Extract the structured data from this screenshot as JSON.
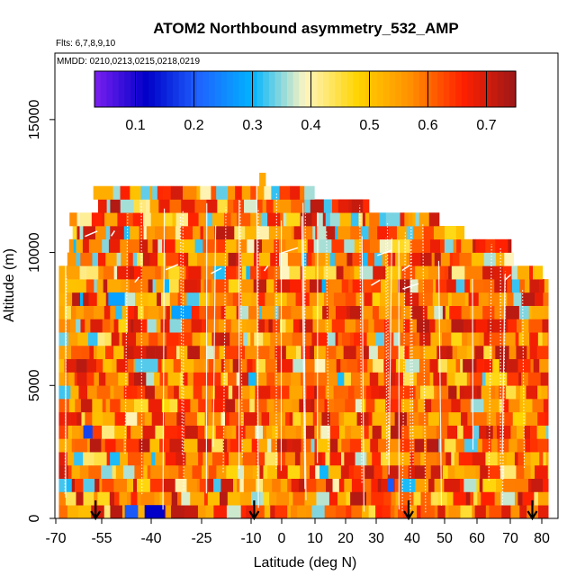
{
  "chart_data": {
    "type": "heatmap",
    "title": "ATOM2 Northbound asymmetry_532_AMP",
    "flights_note": "Flts: 6,7,8,9,10",
    "dates_note": "MMDD: 0210,0213,0215,0218,0219",
    "xlabel": "Latitude (deg N)",
    "ylabel": "Altitude (m)",
    "xlim": [
      -70,
      85
    ],
    "ylim": [
      0,
      17500
    ],
    "x_ticks": [
      -70,
      -55,
      -40,
      -25,
      -10,
      0,
      10,
      20,
      30,
      40,
      50,
      60,
      70,
      80
    ],
    "x_tick_labels": [
      "-70",
      "-55",
      "-40",
      "-25",
      "-10",
      "0",
      "10",
      "20",
      "30",
      "40",
      "50",
      "60",
      "70",
      "80"
    ],
    "y_ticks": [
      0,
      5000,
      10000,
      15000
    ],
    "y_tick_labels": [
      "0",
      "5000",
      "10000",
      "15000"
    ],
    "colorbar": {
      "range": [
        0.03,
        0.75
      ],
      "ticks": [
        0.1,
        0.2,
        0.3,
        0.4,
        0.5,
        0.6,
        0.7
      ],
      "tick_labels": [
        "0.1",
        "0.2",
        "0.3",
        "0.4",
        "0.5",
        "0.6",
        "0.7"
      ],
      "colors": [
        "#7a1ff0",
        "#0000c8",
        "#1e64ff",
        "#00b4ff",
        "#fff5c0",
        "#ffd400",
        "#ff9000",
        "#ff2000",
        "#9c1818"
      ]
    },
    "altitude_bins_m": 500,
    "curtain_top_m": [
      {
        "lat": -69,
        "alt": 9500
      },
      {
        "lat": -68,
        "alt": 10500
      },
      {
        "lat": -66,
        "alt": 11500
      },
      {
        "lat": -58,
        "alt": 12500
      },
      {
        "lat": -10,
        "alt": 12500
      },
      {
        "lat": -9,
        "alt": 13000
      },
      {
        "lat": -7,
        "alt": 12500
      },
      {
        "lat": 8,
        "alt": 12000
      },
      {
        "lat": 26,
        "alt": 12000
      },
      {
        "lat": 27,
        "alt": 11500
      },
      {
        "lat": 46,
        "alt": 11500
      },
      {
        "lat": 47,
        "alt": 11000
      },
      {
        "lat": 53,
        "alt": 11000
      },
      {
        "lat": 54,
        "alt": 10500
      },
      {
        "lat": 69,
        "alt": 10500
      },
      {
        "lat": 70,
        "alt": 9500
      },
      {
        "lat": 78,
        "alt": 9500
      },
      {
        "lat": 80,
        "alt": 9000
      },
      {
        "lat": 82,
        "alt": 9000
      }
    ],
    "profile_markers_lat": [
      -57,
      -9,
      39,
      77
    ],
    "series": [
      {
        "name": "asymmetry_532_AMP",
        "values_range": [
          0.05,
          0.75
        ],
        "typical": 0.58
      }
    ]
  }
}
